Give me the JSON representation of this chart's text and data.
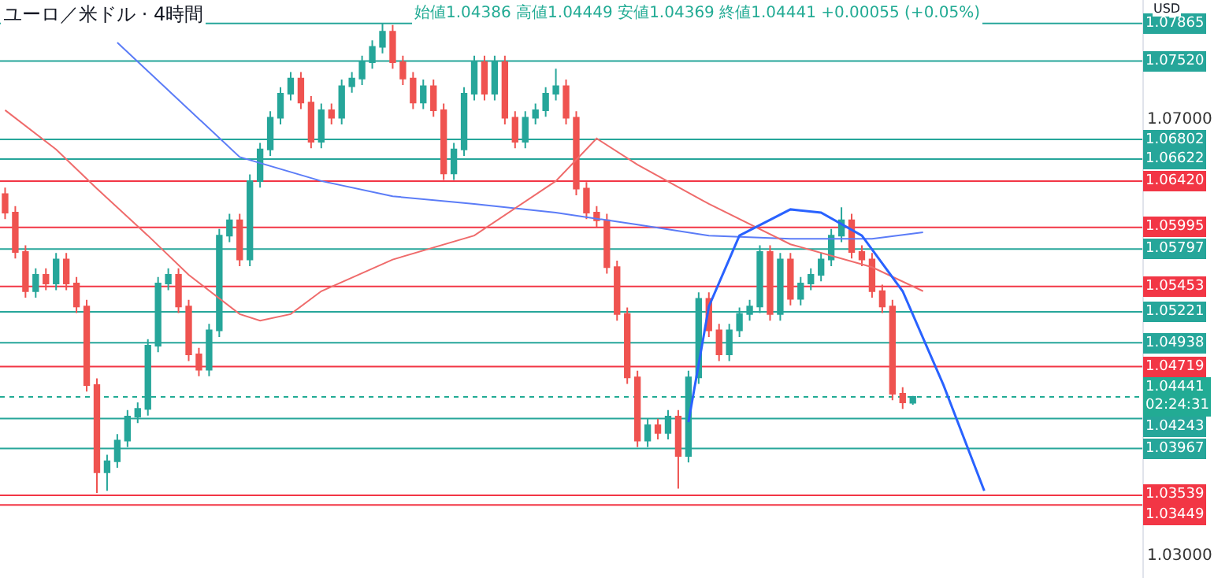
{
  "chart_data": {
    "type": "candlestick",
    "title": "ユーロ／米ドル · 4時間",
    "subtitle": "始値1.04386 高値1.04449 安値1.04369 終値1.04441 +0.00055 (+0.05%)",
    "annotations": [
      "USD"
    ],
    "categories": [
      null,
      null,
      null,
      null,
      null,
      null,
      null,
      null,
      null,
      null,
      null,
      null,
      null,
      null,
      null,
      null,
      null,
      null,
      null,
      null,
      null,
      null,
      null,
      null,
      null,
      null,
      null,
      null,
      null,
      null,
      null,
      null,
      null,
      null,
      null,
      null,
      null,
      null,
      null,
      null,
      null,
      null,
      null,
      null,
      null,
      null,
      null,
      null,
      null,
      null,
      null,
      null,
      null,
      null,
      null,
      null,
      null,
      null,
      null,
      null,
      null,
      null,
      null,
      null,
      null,
      null,
      null,
      null,
      null,
      null,
      null,
      null,
      null,
      null,
      null,
      null,
      null,
      null,
      null,
      null,
      null,
      null,
      null,
      null,
      null,
      null,
      null,
      null,
      null,
      null,
      null,
      null,
      null,
      null,
      null,
      null,
      null,
      null,
      null,
      null,
      null,
      null,
      null,
      null,
      null,
      null,
      null,
      null,
      null,
      null,
      null,
      null
    ],
    "ylim": [
      1.0278,
      1.0808
    ],
    "yticks": [
      {
        "value": 1.07,
        "label": "1.07000"
      },
      {
        "value": 1.03,
        "label": "1.03000"
      }
    ],
    "tick_labels": "y",
    "grid": false,
    "series": [
      {
        "colors": [
          "#ef5350",
          "#ef5350",
          "#ef5350",
          "#26a69a",
          "#ef5350",
          "#26a69a",
          "#ef5350",
          "#ef5350",
          "#ef5350",
          "#ef5350",
          "#26a69a",
          "#26a69a",
          "#26a69a",
          "#26a69a",
          "#26a69a",
          "#26a69a",
          "#26a69a",
          "#ef5350",
          "#ef5350",
          "#ef5350",
          "#26a69a",
          "#26a69a",
          "#26a69a",
          "#ef5350",
          "#26a69a",
          "#26a69a",
          "#26a69a",
          "#26a69a",
          "#26a69a",
          "#ef5350",
          "#ef5350",
          "#26a69a",
          "#ef5350",
          "#26a69a",
          "#26a69a",
          "#26a69a",
          "#26a69a",
          "#26a69a",
          "#ef5350",
          "#ef5350",
          "#ef5350",
          "#26a69a",
          "#ef5350",
          "#ef5350",
          "#26a69a",
          "#26a69a",
          "#26a69a",
          "#ef5350",
          "#26a69a",
          "#ef5350",
          "#ef5350",
          "#26a69a",
          "#26a69a",
          "#26a69a",
          "#26a69a",
          "#ef5350",
          "#ef5350",
          "#ef5350",
          "#ef5350",
          "#ef5350",
          "#ef5350",
          "#ef5350",
          "#ef5350",
          "#26a69a",
          "#ef5350",
          "#26a69a",
          "#ef5350",
          "#26a69a",
          "#26a69a",
          "#ef5350",
          "#ef5350",
          "#26a69a",
          "#26a69a",
          "#26a69a",
          "#26a69a",
          "#ef5350",
          "#26a69a",
          "#ef5350",
          "#26a69a",
          "#26a69a",
          "#26a69a",
          "#26a69a",
          "#26a69a",
          "#ef5350",
          "#ef5350",
          "#ef5350",
          "#ef5350",
          "#ef5350",
          "#ef5350",
          "#26a69a",
          null,
          null,
          null,
          null,
          null,
          null,
          null,
          null,
          null,
          null,
          null,
          null,
          null,
          null,
          null,
          null,
          null,
          null,
          null,
          null,
          null,
          null
        ],
        "ohlc": [
          [
            1.063,
            1.0636,
            1.0607,
            1.0613
          ],
          [
            1.0613,
            1.0619,
            1.0571,
            1.0577
          ],
          [
            1.0577,
            1.0583,
            1.0535,
            1.0541
          ],
          [
            1.0541,
            1.0562,
            1.0535,
            1.0556
          ],
          [
            1.0556,
            1.0562,
            1.0542,
            1.0548
          ],
          [
            1.0548,
            1.0576,
            1.0542,
            1.057
          ],
          [
            1.057,
            1.0576,
            1.0542,
            1.0548
          ],
          [
            1.0548,
            1.0554,
            1.0521,
            1.0527
          ],
          [
            1.0527,
            1.0533,
            1.0449,
            1.0455
          ],
          [
            1.0455,
            1.0461,
            1.0356,
            1.0375
          ],
          [
            1.0375,
            1.0391,
            1.0358,
            1.0385
          ],
          [
            1.0385,
            1.041,
            1.0379,
            1.0404
          ],
          [
            1.0404,
            1.0432,
            1.0398,
            1.0426
          ],
          [
            1.0426,
            1.0439,
            1.042,
            1.0433
          ],
          [
            1.0433,
            1.0497,
            1.0427,
            1.0491
          ],
          [
            1.0491,
            1.0554,
            1.0485,
            1.0548
          ],
          [
            1.0548,
            1.0562,
            1.0542,
            1.0556
          ],
          [
            1.0556,
            1.0562,
            1.0521,
            1.0527
          ],
          [
            1.0527,
            1.0533,
            1.0477,
            1.0483
          ],
          [
            1.0483,
            1.0489,
            1.0463,
            1.0469
          ],
          [
            1.0469,
            1.0511,
            1.0463,
            1.0505
          ],
          [
            1.0505,
            1.0598,
            1.0499,
            1.0592
          ],
          [
            1.0592,
            1.0612,
            1.0586,
            1.0606
          ],
          [
            1.0606,
            1.0612,
            1.0564,
            1.057
          ],
          [
            1.057,
            1.0648,
            1.0564,
            1.0642
          ],
          [
            1.0642,
            1.0677,
            1.0636,
            1.0671
          ],
          [
            1.0671,
            1.0706,
            1.0665,
            1.07
          ],
          [
            1.07,
            1.0728,
            1.0694,
            1.0722
          ],
          [
            1.0722,
            1.0742,
            1.0716,
            1.0736
          ],
          [
            1.0736,
            1.0742,
            1.0708,
            1.0714
          ],
          [
            1.0714,
            1.072,
            1.0672,
            1.0678
          ],
          [
            1.0678,
            1.0713,
            1.0672,
            1.0707
          ],
          [
            1.0707,
            1.0713,
            1.0694,
            1.07
          ],
          [
            1.07,
            1.0735,
            1.0694,
            1.0729
          ],
          [
            1.0729,
            1.0742,
            1.0723,
            1.0736
          ],
          [
            1.0736,
            1.0757,
            1.073,
            1.0751
          ],
          [
            1.0751,
            1.0771,
            1.0745,
            1.0765
          ],
          [
            1.0765,
            1.0787,
            1.0759,
            1.0779
          ],
          [
            1.0779,
            1.0785,
            1.0745,
            1.0751
          ],
          [
            1.0751,
            1.0757,
            1.073,
            1.0736
          ],
          [
            1.0736,
            1.0742,
            1.0708,
            1.0714
          ],
          [
            1.0714,
            1.0735,
            1.0708,
            1.0729
          ],
          [
            1.0729,
            1.0735,
            1.0701,
            1.0707
          ],
          [
            1.0707,
            1.0713,
            1.0643,
            1.0649
          ],
          [
            1.0649,
            1.0677,
            1.0643,
            1.0671
          ],
          [
            1.0671,
            1.0728,
            1.0665,
            1.0722
          ],
          [
            1.0722,
            1.0757,
            1.0716,
            1.0751
          ],
          [
            1.0751,
            1.0757,
            1.0716,
            1.0722
          ],
          [
            1.0722,
            1.0757,
            1.0716,
            1.0751
          ],
          [
            1.0751,
            1.0757,
            1.0694,
            1.07
          ],
          [
            1.07,
            1.0706,
            1.0672,
            1.0678
          ],
          [
            1.0678,
            1.0706,
            1.0672,
            1.07
          ],
          [
            1.07,
            1.0713,
            1.0694,
            1.0707
          ],
          [
            1.0707,
            1.0728,
            1.0701,
            1.0722
          ],
          [
            1.0722,
            1.0745,
            1.0716,
            1.0729
          ],
          [
            1.0729,
            1.0735,
            1.0694,
            1.07
          ],
          [
            1.07,
            1.0706,
            1.0629,
            1.0635
          ],
          [
            1.0635,
            1.0641,
            1.0607,
            1.0613
          ],
          [
            1.0613,
            1.0619,
            1.06,
            1.0606
          ],
          [
            1.0606,
            1.0612,
            1.0557,
            1.0563
          ],
          [
            1.0563,
            1.0569,
            1.0514,
            1.052
          ],
          [
            1.052,
            1.0526,
            1.0456,
            1.0462
          ],
          [
            1.0462,
            1.0468,
            1.0398,
            1.0404
          ],
          [
            1.0404,
            1.0424,
            1.0398,
            1.0418
          ],
          [
            1.0418,
            1.0424,
            1.0405,
            1.0411
          ],
          [
            1.0411,
            1.0432,
            1.0405,
            1.0426
          ],
          [
            1.0426,
            1.0432,
            1.036,
            1.039
          ],
          [
            1.039,
            1.0468,
            1.0384,
            1.0462
          ],
          [
            1.0462,
            1.054,
            1.0456,
            1.0534
          ],
          [
            1.0534,
            1.054,
            1.0499,
            1.0505
          ],
          [
            1.0505,
            1.0511,
            1.0477,
            1.0483
          ],
          [
            1.0483,
            1.0511,
            1.0477,
            1.0505
          ],
          [
            1.0505,
            1.0526,
            1.0499,
            1.052
          ],
          [
            1.052,
            1.0533,
            1.0514,
            1.0527
          ],
          [
            1.0527,
            1.0583,
            1.0521,
            1.0577
          ],
          [
            1.0577,
            1.0583,
            1.0514,
            1.052
          ],
          [
            1.052,
            1.0576,
            1.0514,
            1.057
          ],
          [
            1.057,
            1.0576,
            1.0528,
            1.0534
          ],
          [
            1.0534,
            1.0554,
            1.0528,
            1.0548
          ],
          [
            1.0548,
            1.0562,
            1.0542,
            1.0556
          ],
          [
            1.0556,
            1.0576,
            1.055,
            1.057
          ],
          [
            1.057,
            1.0598,
            1.0564,
            1.0592
          ],
          [
            1.0592,
            1.0618,
            1.0586,
            1.0606
          ],
          [
            1.0606,
            1.0612,
            1.0571,
            1.0577
          ],
          [
            1.0577,
            1.0583,
            1.0564,
            1.057
          ],
          [
            1.057,
            1.0576,
            1.0535,
            1.0541
          ],
          [
            1.0541,
            1.0547,
            1.0521,
            1.0527
          ],
          [
            1.0527,
            1.0533,
            1.0441,
            1.0447
          ],
          [
            1.0447,
            1.0453,
            1.0433,
            1.0439
          ],
          [
            1.04386,
            1.04449,
            1.04369,
            1.04441
          ],
          null,
          null,
          null,
          null,
          null,
          null,
          null,
          null,
          null,
          null,
          null,
          null,
          null,
          null,
          null,
          null,
          null,
          null,
          null,
          null,
          null,
          null
        ]
      },
      {
        "type": "line",
        "color": "#5b7cf7",
        "values": [
          null,
          null,
          null,
          null,
          null,
          null,
          null,
          null,
          null,
          null,
          null,
          1.0769,
          null,
          null,
          null,
          null,
          null,
          null,
          null,
          null,
          null,
          null,
          null,
          1.0664,
          null,
          null,
          null,
          null,
          null,
          null,
          null,
          1.0642,
          null,
          null,
          null,
          null,
          null,
          null,
          1.0628,
          null,
          null,
          null,
          null,
          null,
          null,
          null,
          1.0621,
          null,
          null,
          null,
          null,
          null,
          null,
          null,
          1.0613,
          null,
          null,
          null,
          null,
          null,
          null,
          null,
          1.0602,
          null,
          null,
          null,
          null,
          null,
          null,
          1.0592,
          null,
          null,
          null,
          null,
          null,
          null,
          null,
          1.0589,
          null,
          null,
          null,
          null,
          null,
          null,
          null,
          1.0589,
          null,
          null,
          null,
          null,
          1.0595,
          null,
          null,
          null,
          null,
          null,
          null,
          null,
          null,
          null,
          null,
          null,
          null,
          null,
          null,
          null,
          null,
          null,
          null,
          null,
          null,
          null
        ]
      },
      {
        "type": "line",
        "color": "#ef6b6b",
        "values": [
          1.0707,
          null,
          null,
          null,
          null,
          1.0671,
          null,
          null,
          null,
          1.0635,
          null,
          null,
          null,
          null,
          1.0592,
          null,
          null,
          null,
          1.0556,
          null,
          null,
          null,
          null,
          1.052,
          null,
          1.0514,
          null,
          null,
          1.052,
          null,
          null,
          1.0541,
          null,
          null,
          null,
          null,
          null,
          null,
          1.057,
          null,
          null,
          null,
          null,
          null,
          null,
          null,
          1.0592,
          null,
          null,
          null,
          null,
          null,
          null,
          null,
          1.0642,
          null,
          null,
          null,
          1.0681,
          null,
          null,
          null,
          1.0657,
          null,
          null,
          null,
          null,
          null,
          null,
          1.0621,
          null,
          null,
          null,
          null,
          null,
          null,
          null,
          1.0584,
          null,
          null,
          null,
          null,
          null,
          null,
          null,
          1.0563,
          null,
          null,
          null,
          null,
          1.0541,
          null,
          null,
          null,
          null,
          null,
          null,
          null,
          null,
          null,
          null,
          null,
          null,
          null,
          null,
          null,
          null,
          null,
          null,
          null,
          null,
          null
        ]
      },
      {
        "type": "line",
        "color": "#2962ff",
        "values": [
          null,
          null,
          null,
          null,
          null,
          null,
          null,
          null,
          null,
          null,
          null,
          null,
          null,
          null,
          null,
          null,
          null,
          null,
          null,
          null,
          null,
          null,
          null,
          null,
          null,
          null,
          null,
          null,
          null,
          null,
          null,
          null,
          null,
          null,
          null,
          null,
          null,
          null,
          null,
          null,
          null,
          null,
          null,
          null,
          null,
          null,
          null,
          null,
          null,
          null,
          null,
          null,
          null,
          null,
          null,
          null,
          null,
          null,
          null,
          null,
          null,
          null,
          null,
          null,
          null,
          null,
          null,
          1.0421,
          null,
          1.0527,
          null,
          null,
          1.0592,
          null,
          null,
          null,
          null,
          1.0616,
          null,
          null,
          1.0613,
          null,
          null,
          null,
          1.0592,
          null,
          null,
          null,
          1.0541,
          null,
          null,
          null,
          1.0455,
          null,
          null,
          null,
          1.0358,
          null,
          null,
          null,
          null,
          null,
          null,
          null,
          null,
          null,
          null,
          null,
          null,
          null,
          null,
          null
        ]
      }
    ],
    "ref_lines": [
      {
        "axis": "y",
        "value": 1.07865,
        "label": "1.07865",
        "color": "#26a69a"
      },
      {
        "axis": "y",
        "value": 1.0752,
        "label": "1.07520",
        "color": "#26a69a"
      },
      {
        "axis": "y",
        "value": 1.06802,
        "label": "1.06802",
        "color": "#26a69a"
      },
      {
        "axis": "y",
        "value": 1.06622,
        "label": "1.06622",
        "color": "#26a69a"
      },
      {
        "axis": "y",
        "value": 1.0642,
        "label": "1.06420",
        "color": "#f23645"
      },
      {
        "axis": "y",
        "value": 1.05995,
        "label": "1.05995",
        "color": "#f23645"
      },
      {
        "axis": "y",
        "value": 1.05797,
        "label": "1.05797",
        "color": "#26a69a"
      },
      {
        "axis": "y",
        "value": 1.05453,
        "label": "1.05453",
        "color": "#f23645"
      },
      {
        "axis": "y",
        "value": 1.05221,
        "label": "1.05221",
        "color": "#26a69a"
      },
      {
        "axis": "y",
        "value": 1.04938,
        "label": "1.04938",
        "color": "#26a69a"
      },
      {
        "axis": "y",
        "value": 1.04719,
        "label": "1.04719",
        "color": "#f23645"
      },
      {
        "axis": "y",
        "value": 1.04441,
        "label": "1.04441\n02:24:31",
        "color": "#22ab94",
        "line_style": "dotted"
      },
      {
        "axis": "y",
        "value": 1.04243,
        "label": "1.04243",
        "color": "#26a69a"
      },
      {
        "axis": "y",
        "value": 1.03967,
        "label": "1.03967",
        "color": "#26a69a"
      },
      {
        "axis": "y",
        "value": 1.03539,
        "label": "1.03539",
        "color": "#f23645"
      },
      {
        "axis": "y",
        "value": 1.03449,
        "label": "1.03449",
        "color": "#f23645"
      }
    ]
  }
}
